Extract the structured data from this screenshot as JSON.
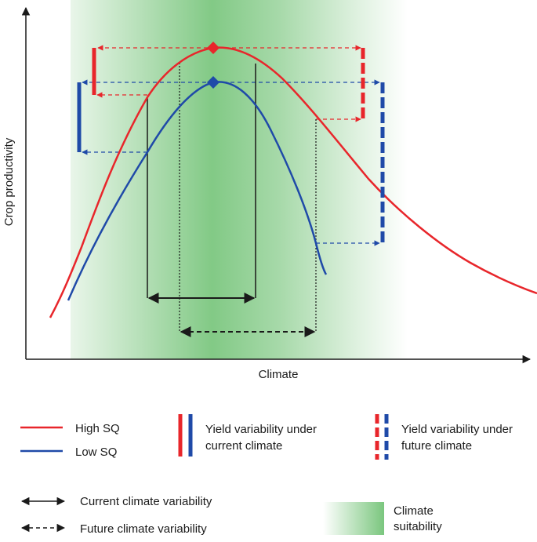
{
  "colors": {
    "high_sq": "#e8262b",
    "low_sq": "#1f4aa8",
    "climate_suitability": "#6cc070",
    "axis": "#1a1a1a"
  },
  "axes": {
    "x_label": "Climate",
    "y_label": "Crop productivity"
  },
  "legend": {
    "high_sq": "High SQ",
    "low_sq": "Low SQ",
    "yield_current_line1": "Yield variability under",
    "yield_current_line2": "current climate",
    "yield_future_line1": "Yield variability under",
    "yield_future_line2": "future climate",
    "current_climate_var": "Current climate variability",
    "future_climate_var": "Future climate variability",
    "climate_suitability_line1": "Climate",
    "climate_suitability_line2": "suitability"
  }
}
